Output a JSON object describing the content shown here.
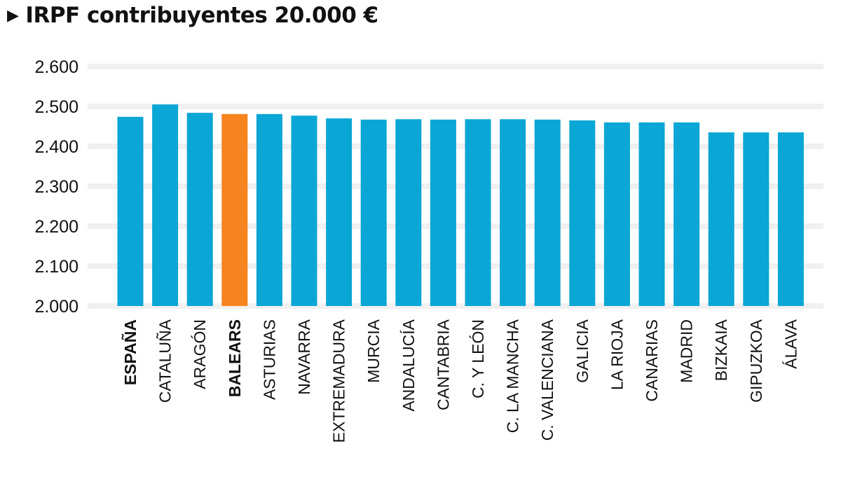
{
  "chart_data": {
    "type": "bar",
    "title": "IRPF contribuyentes 20.000 €",
    "title_icon": "play-triangle-icon",
    "categories": [
      "ESPAÑA",
      "CATALUÑA",
      "ARAGÓN",
      "BALEARS",
      "ASTURIAS",
      "NAVARRA",
      "EXTREMADURA",
      "MURCIA",
      "ANDALUCÍA",
      "CANTABRIA",
      "C. Y LEÓN",
      "C. LA MANCHA",
      "C. VALENCIANA",
      "GALICIA",
      "LA RIOJA",
      "CANARIAS",
      "MADRID",
      "BIZKAIA",
      "GIPUZKOA",
      "ÁLAVA"
    ],
    "values": [
      2474,
      2505,
      2484,
      2481,
      2481,
      2477,
      2470,
      2467,
      2468,
      2467,
      2468,
      2468,
      2467,
      2465,
      2460,
      2460,
      2460,
      2435,
      2435,
      2435
    ],
    "bold_categories": [
      "ESPAÑA",
      "BALEARS"
    ],
    "highlight": "BALEARS",
    "ylim": [
      2000,
      2600
    ],
    "yticks": [
      2000,
      2100,
      2200,
      2300,
      2400,
      2500,
      2600
    ],
    "ytick_labels": [
      "2.000",
      "2.100",
      "2.200",
      "2.300",
      "2.400",
      "2.500",
      "2.600"
    ],
    "grid": true,
    "colors": {
      "bar": "#0aa6d6",
      "highlight": "#f7841f",
      "grid": "#e6e6e6"
    },
    "xlabel": "",
    "ylabel": ""
  }
}
